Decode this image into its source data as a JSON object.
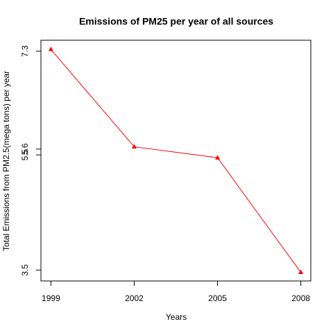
{
  "chart_data": {
    "type": "line",
    "title": "Emissions of PM25 per year of all sources",
    "xlabel": "Years",
    "ylabel": "Total Emissions from PM2.5(mega tons) per year",
    "x": [
      1999,
      2002,
      2005,
      2008
    ],
    "series": [
      {
        "name": "Emissions",
        "color": "#ff0000",
        "marker": "triangle",
        "values": [
          7.33,
          5.64,
          5.45,
          3.46
        ]
      }
    ],
    "xlim": [
      1998.64,
      2008.36
    ],
    "xticks": [
      1999,
      2002,
      2005,
      2008
    ],
    "ylim": [
      3.31,
      7.49
    ],
    "yticks": [
      7.3,
      5.6,
      5.5,
      3.5
    ],
    "grid": false
  }
}
